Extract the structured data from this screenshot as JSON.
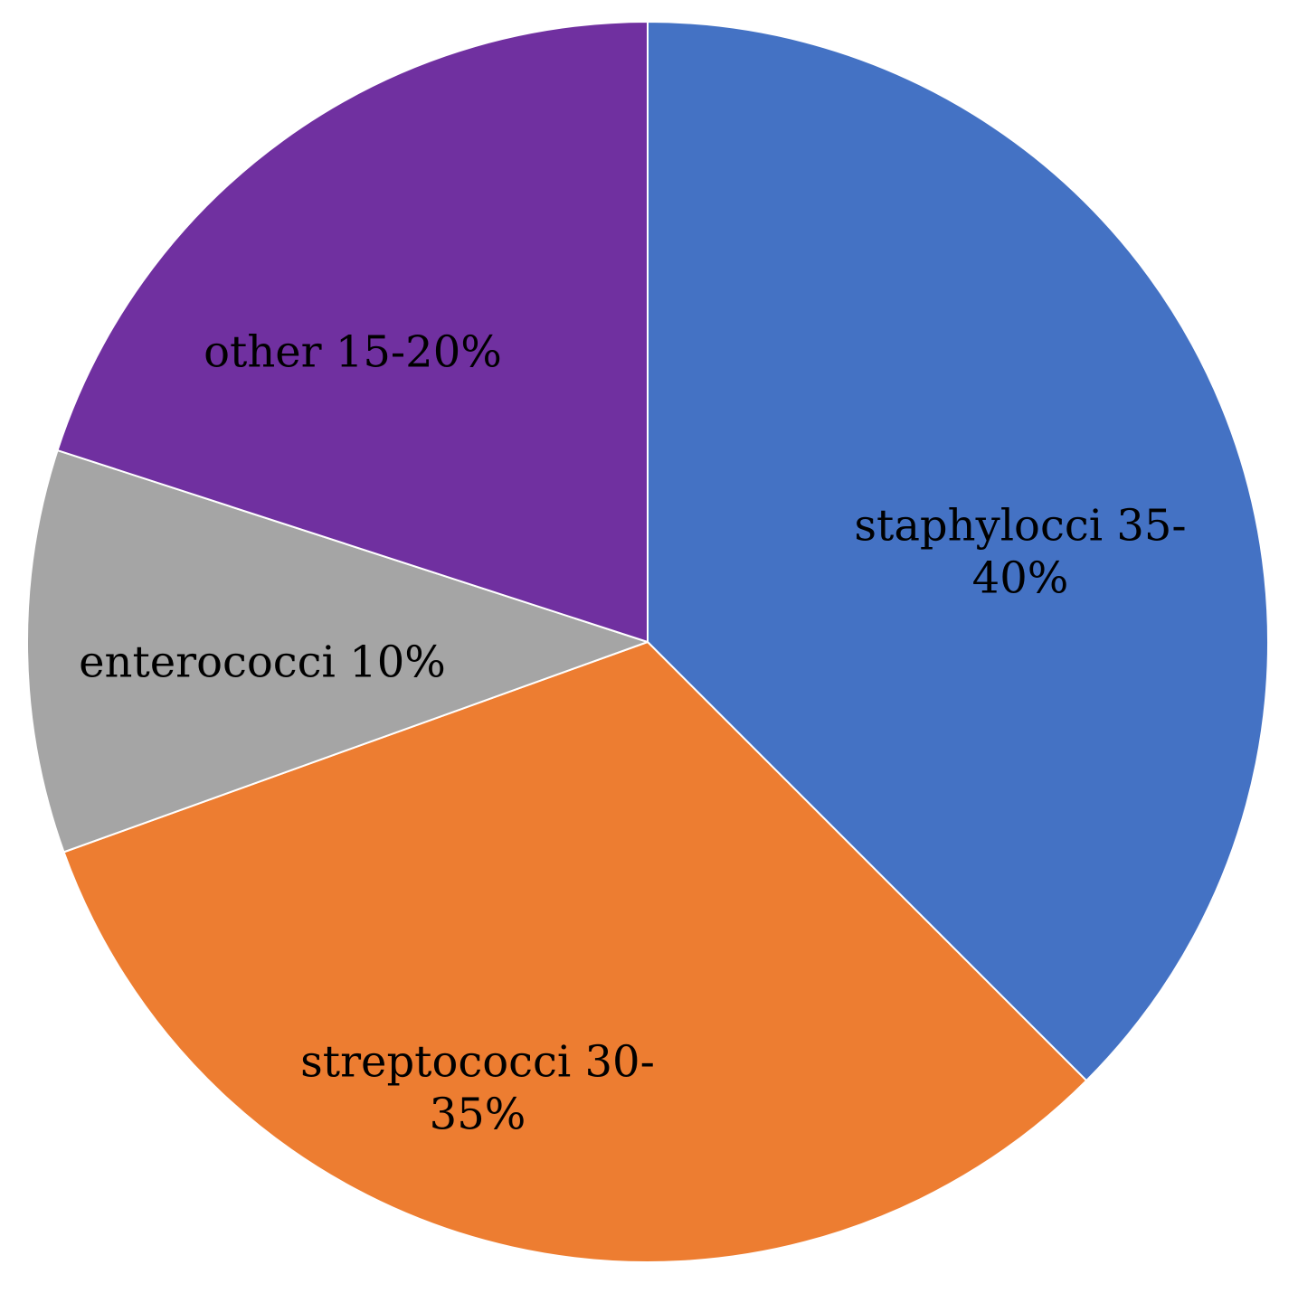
{
  "chart_data": {
    "type": "pie",
    "title": "",
    "legend": "none",
    "start": "12 o'clock",
    "direction": "clockwise",
    "slices": [
      {
        "name": "staphylocci",
        "label_lines": [
          "staphylocci 35-",
          "40%"
        ],
        "value": 37.5,
        "color": "#4472C4"
      },
      {
        "name": "streptococci",
        "label_lines": [
          "streptococci 30-",
          "35%"
        ],
        "value": 32.0,
        "color": "#ED7D31"
      },
      {
        "name": "enterococci",
        "label_lines": [
          "enterococci 10%"
        ],
        "value": 10.5,
        "color": "#A5A5A5"
      },
      {
        "name": "other",
        "label_lines": [
          "other 15-20%"
        ],
        "value": 20.0,
        "color": "#7030A0"
      }
    ]
  }
}
